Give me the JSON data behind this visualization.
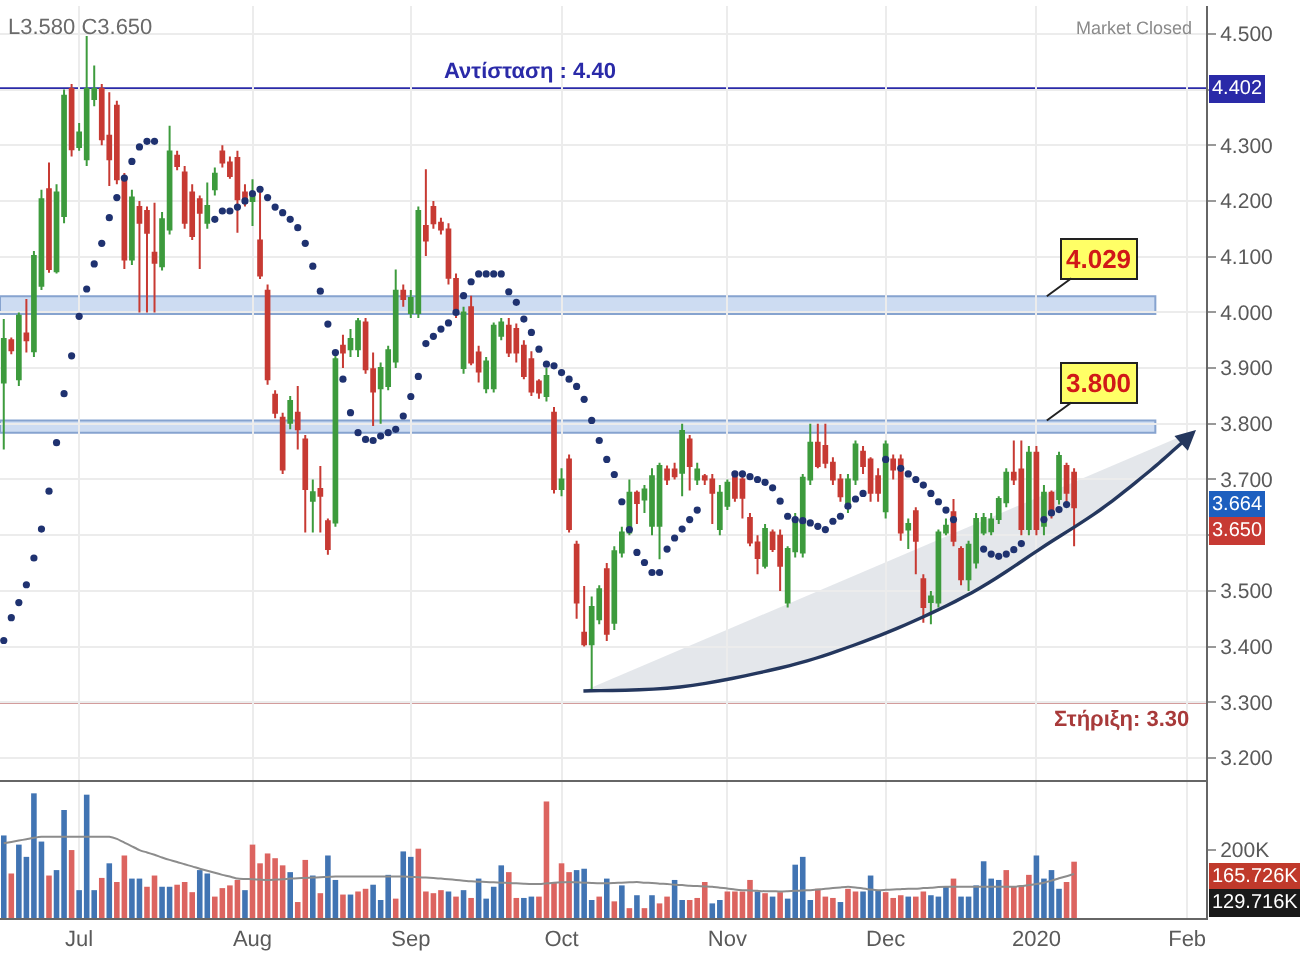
{
  "chart_data": [
    {
      "type": "candlestick",
      "categories": [
        null,
        null,
        null,
        null,
        null,
        null,
        null,
        null,
        null,
        null,
        null,
        null,
        null,
        null,
        null,
        null,
        null,
        null,
        null,
        null,
        null,
        null,
        null,
        null,
        null,
        null,
        null,
        null,
        null,
        null,
        null,
        null,
        null,
        null,
        null,
        null,
        null,
        null,
        null,
        null,
        null,
        null,
        null,
        null,
        null,
        null,
        null,
        null,
        null,
        null,
        null,
        null,
        null,
        null,
        null,
        null,
        null,
        null,
        null,
        null,
        null,
        null,
        null,
        null,
        null,
        null,
        null,
        null,
        null,
        null,
        null,
        null,
        null,
        null,
        null,
        null,
        null,
        null,
        null,
        null,
        null,
        null,
        null,
        null,
        null,
        null,
        null,
        null,
        null,
        null,
        null,
        null,
        null,
        null,
        null,
        null,
        null,
        null,
        null,
        null,
        null,
        null,
        null,
        null,
        null,
        null,
        null,
        null,
        null,
        null,
        null,
        null,
        null,
        null,
        null,
        null,
        null,
        null,
        null,
        null,
        null,
        null,
        null,
        null,
        null,
        null,
        null,
        null,
        null,
        null,
        null,
        null,
        null,
        null,
        null,
        null,
        null,
        null,
        null,
        null,
        null,
        null,
        null,
        null,
        null,
        null,
        null,
        null,
        null,
        null,
        null,
        null,
        null,
        null,
        null,
        null,
        null,
        null,
        null,
        null
      ],
      "ohlc": [
        [
          3.874,
          3.988,
          3.754,
          3.952
        ],
        [
          3.95,
          3.955,
          3.925,
          3.932
        ],
        [
          3.88,
          4.0,
          3.868,
          3.994
        ],
        [
          3.962,
          4.024,
          3.928,
          3.95
        ],
        [
          3.93,
          4.11,
          3.92,
          4.101
        ],
        [
          4.048,
          4.22,
          4.04,
          4.203
        ],
        [
          4.221,
          4.269,
          4.071,
          4.078
        ],
        [
          4.074,
          4.23,
          4.07,
          4.215
        ],
        [
          4.173,
          4.4,
          4.16,
          4.389
        ],
        [
          4.401,
          4.41,
          4.28,
          4.293
        ],
        [
          4.297,
          4.34,
          4.29,
          4.323
        ],
        [
          4.275,
          4.496,
          4.263,
          4.401
        ],
        [
          4.383,
          4.443,
          4.37,
          4.401
        ],
        [
          4.401,
          4.41,
          4.3,
          4.311
        ],
        [
          4.317,
          4.395,
          4.227,
          4.275
        ],
        [
          4.371,
          4.38,
          4.23,
          4.239
        ],
        [
          4.241,
          4.25,
          4.078,
          4.095
        ],
        [
          4.095,
          4.22,
          4.085,
          4.206
        ],
        [
          4.189,
          4.2,
          4.0,
          4.161
        ],
        [
          4.182,
          4.19,
          4.0,
          4.143
        ],
        [
          4.107,
          4.197,
          4.0,
          4.089
        ],
        [
          4.083,
          4.18,
          4.075,
          4.167
        ],
        [
          4.149,
          4.335,
          4.14,
          4.289
        ],
        [
          4.281,
          4.29,
          4.255,
          4.263
        ],
        [
          4.251,
          4.263,
          4.15,
          4.161
        ],
        [
          4.215,
          4.23,
          4.13,
          4.137
        ],
        [
          4.203,
          4.21,
          4.078,
          4.179
        ],
        [
          4.161,
          4.233,
          4.15,
          4.191
        ],
        [
          4.221,
          4.26,
          4.21,
          4.249
        ],
        [
          4.289,
          4.3,
          4.26,
          4.269
        ],
        [
          4.269,
          4.28,
          4.24,
          4.245
        ],
        [
          4.277,
          4.29,
          4.143,
          4.203
        ],
        [
          4.215,
          4.23,
          4.19,
          4.197
        ],
        [
          4.2,
          4.239,
          4.155,
          4.21
        ],
        [
          4.129,
          4.221,
          4.06,
          4.066
        ],
        [
          4.039,
          4.05,
          3.87,
          3.88
        ],
        [
          3.852,
          3.86,
          3.81,
          3.82
        ],
        [
          3.811,
          3.82,
          3.71,
          3.718
        ],
        [
          3.802,
          3.85,
          3.79,
          3.841
        ],
        [
          3.82,
          3.868,
          3.754,
          3.79
        ],
        [
          3.772,
          3.78,
          3.605,
          3.683
        ],
        [
          3.662,
          3.7,
          3.605,
          3.677
        ],
        [
          3.683,
          3.724,
          3.605,
          3.671
        ],
        [
          3.625,
          3.63,
          3.565,
          3.575
        ],
        [
          3.623,
          3.93,
          3.615,
          3.916
        ],
        [
          3.94,
          3.96,
          3.9,
          3.928
        ],
        [
          3.934,
          3.97,
          3.92,
          3.952
        ],
        [
          3.934,
          3.99,
          3.92,
          3.984
        ],
        [
          3.982,
          3.99,
          3.89,
          3.898
        ],
        [
          3.898,
          3.928,
          3.796,
          3.858
        ],
        [
          3.864,
          3.91,
          3.8,
          3.9
        ],
        [
          3.868,
          3.94,
          3.86,
          3.932
        ],
        [
          3.912,
          4.077,
          3.9,
          4.039
        ],
        [
          4.039,
          4.05,
          4.01,
          4.024
        ],
        [
          3.999,
          4.04,
          3.99,
          4.026
        ],
        [
          3.999,
          4.19,
          3.99,
          4.182
        ],
        [
          4.155,
          4.257,
          4.101,
          4.129
        ],
        [
          4.189,
          4.2,
          4.15,
          4.16
        ],
        [
          4.161,
          4.17,
          4.14,
          4.149
        ],
        [
          4.149,
          4.16,
          4.05,
          4.062
        ],
        [
          4.06,
          4.07,
          3.99,
          4.0
        ],
        [
          3.9,
          4.01,
          3.89,
          4.0
        ],
        [
          4.009,
          4.03,
          3.905,
          3.91
        ],
        [
          3.928,
          3.94,
          3.874,
          3.894
        ],
        [
          3.864,
          3.92,
          3.855,
          3.912
        ],
        [
          3.864,
          3.982,
          3.856,
          3.976
        ],
        [
          3.958,
          3.99,
          3.95,
          3.982
        ],
        [
          3.976,
          3.99,
          3.92,
          3.928
        ],
        [
          3.97,
          3.98,
          3.91,
          3.928
        ],
        [
          3.94,
          3.95,
          3.88,
          3.886
        ],
        [
          3.916,
          3.93,
          3.85,
          3.858
        ],
        [
          3.876,
          3.88,
          3.845,
          3.856
        ],
        [
          3.85,
          3.9,
          3.84,
          3.886
        ],
        [
          3.82,
          3.83,
          3.675,
          3.683
        ],
        [
          3.683,
          3.72,
          3.67,
          3.7
        ],
        [
          3.736,
          3.745,
          3.605,
          3.611
        ],
        [
          3.583,
          3.59,
          3.45,
          3.479
        ],
        [
          3.425,
          3.509,
          3.4,
          3.404
        ],
        [
          3.404,
          3.49,
          3.322,
          3.471
        ],
        [
          3.449,
          3.51,
          3.44,
          3.503
        ],
        [
          3.539,
          3.55,
          3.41,
          3.423
        ],
        [
          3.443,
          3.58,
          3.43,
          3.571
        ],
        [
          3.569,
          3.615,
          3.56,
          3.605
        ],
        [
          3.605,
          3.7,
          3.6,
          3.676
        ],
        [
          3.676,
          3.68,
          3.62,
          3.658
        ],
        [
          3.664,
          3.69,
          3.64,
          3.682
        ],
        [
          3.617,
          3.72,
          3.6,
          3.706
        ],
        [
          3.617,
          3.73,
          3.557,
          3.724
        ],
        [
          3.718,
          3.725,
          3.69,
          3.7
        ],
        [
          3.718,
          3.73,
          3.7,
          3.706
        ],
        [
          3.712,
          3.8,
          3.67,
          3.787
        ],
        [
          3.772,
          3.78,
          3.68,
          3.724
        ],
        [
          3.7,
          3.73,
          3.69,
          3.718
        ],
        [
          3.706,
          3.71,
          3.69,
          3.7
        ],
        [
          3.7,
          3.71,
          3.62,
          3.676
        ],
        [
          3.611,
          3.69,
          3.6,
          3.676
        ],
        [
          3.653,
          3.7,
          3.645,
          3.694
        ],
        [
          3.703,
          3.71,
          3.66,
          3.667
        ],
        [
          3.7,
          3.71,
          3.63,
          3.667
        ],
        [
          3.631,
          3.64,
          3.58,
          3.587
        ],
        [
          3.587,
          3.6,
          3.53,
          3.559
        ],
        [
          3.545,
          3.62,
          3.54,
          3.611
        ],
        [
          3.605,
          3.61,
          3.57,
          3.575
        ],
        [
          3.599,
          3.61,
          3.5,
          3.545
        ],
        [
          3.479,
          3.58,
          3.47,
          3.575
        ],
        [
          3.571,
          3.64,
          3.56,
          3.629
        ],
        [
          3.569,
          3.71,
          3.56,
          3.703
        ],
        [
          3.7,
          3.8,
          3.69,
          3.766
        ],
        [
          3.766,
          3.8,
          3.72,
          3.724
        ],
        [
          3.76,
          3.8,
          3.72,
          3.73
        ],
        [
          3.73,
          3.74,
          3.69,
          3.7
        ],
        [
          3.7,
          3.71,
          3.66,
          3.67
        ],
        [
          3.652,
          3.71,
          3.64,
          3.7
        ],
        [
          3.7,
          3.77,
          3.69,
          3.763
        ],
        [
          3.75,
          3.76,
          3.71,
          3.724
        ],
        [
          3.736,
          3.74,
          3.66,
          3.676
        ],
        [
          3.706,
          3.72,
          3.66,
          3.676
        ],
        [
          3.643,
          3.77,
          3.63,
          3.763
        ],
        [
          3.736,
          3.745,
          3.7,
          3.718
        ],
        [
          3.736,
          3.745,
          3.59,
          3.605
        ],
        [
          3.61,
          3.63,
          3.575,
          3.62
        ],
        [
          3.643,
          3.65,
          3.53,
          3.59
        ],
        [
          3.521,
          3.53,
          3.443,
          3.471
        ],
        [
          3.48,
          3.5,
          3.44,
          3.49
        ],
        [
          3.479,
          3.61,
          3.47,
          3.605
        ],
        [
          3.605,
          3.63,
          3.6,
          3.617
        ],
        [
          3.641,
          3.665,
          3.58,
          3.59
        ],
        [
          3.575,
          3.58,
          3.51,
          3.521
        ],
        [
          3.521,
          3.59,
          3.5,
          3.583
        ],
        [
          3.551,
          3.64,
          3.54,
          3.629
        ],
        [
          3.605,
          3.64,
          3.6,
          3.631
        ],
        [
          3.607,
          3.64,
          3.6,
          3.628
        ],
        [
          3.629,
          3.67,
          3.62,
          3.665
        ],
        [
          3.659,
          3.72,
          3.65,
          3.712
        ],
        [
          3.712,
          3.77,
          3.69,
          3.7
        ],
        [
          3.718,
          3.77,
          3.6,
          3.611
        ],
        [
          3.611,
          3.76,
          3.6,
          3.748
        ],
        [
          3.748,
          3.76,
          3.6,
          3.611
        ],
        [
          3.617,
          3.69,
          3.6,
          3.676
        ],
        [
          3.676,
          3.68,
          3.63,
          3.641
        ],
        [
          3.665,
          3.75,
          3.655,
          3.742
        ],
        [
          3.724,
          3.73,
          3.66,
          3.676
        ],
        [
          3.712,
          3.72,
          3.58,
          3.65
        ],
        null,
        null,
        null,
        null,
        null,
        null,
        null,
        null,
        null,
        null,
        null,
        null,
        null,
        null,
        null,
        null,
        null
      ],
      "colors": [
        "#3d9b3d",
        "#c73a33",
        "#3d9b3d",
        "#c73a33",
        "#3d9b3d",
        "#3d9b3d",
        "#c73a33",
        "#3d9b3d",
        "#3d9b3d",
        "#c73a33",
        "#3d9b3d",
        "#3d9b3d",
        "#3d9b3d",
        "#c73a33",
        "#c73a33",
        "#c73a33",
        "#c73a33",
        "#3d9b3d",
        "#c73a33",
        "#c73a33",
        "#c73a33",
        "#3d9b3d",
        "#3d9b3d",
        "#c73a33",
        "#c73a33",
        "#c73a33",
        "#c73a33",
        "#3d9b3d",
        "#3d9b3d",
        "#c73a33",
        "#c73a33",
        "#c73a33",
        "#c73a33",
        "#3d9b3d",
        "#c73a33",
        "#c73a33",
        "#c73a33",
        "#c73a33",
        "#3d9b3d",
        "#c73a33",
        "#c73a33",
        "#3d9b3d",
        "#c73a33",
        "#c73a33",
        "#3d9b3d",
        "#c73a33",
        "#3d9b3d",
        "#3d9b3d",
        "#c73a33",
        "#c73a33",
        "#3d9b3d",
        "#3d9b3d",
        "#3d9b3d",
        "#c73a33",
        "#3d9b3d",
        "#3d9b3d",
        "#c73a33",
        "#c73a33",
        "#c73a33",
        "#c73a33",
        "#c73a33",
        "#3d9b3d",
        "#c73a33",
        "#c73a33",
        "#3d9b3d",
        "#3d9b3d",
        "#3d9b3d",
        "#c73a33",
        "#c73a33",
        "#c73a33",
        "#c73a33",
        "#c73a33",
        "#3d9b3d",
        "#c73a33",
        "#3d9b3d",
        "#c73a33",
        "#c73a33",
        "#c73a33",
        "#3d9b3d",
        "#3d9b3d",
        "#c73a33",
        "#3d9b3d",
        "#3d9b3d",
        "#3d9b3d",
        "#c73a33",
        "#3d9b3d",
        "#3d9b3d",
        "#3d9b3d",
        "#c73a33",
        "#c73a33",
        "#3d9b3d",
        "#c73a33",
        "#3d9b3d",
        "#c73a33",
        "#c73a33",
        "#3d9b3d",
        "#3d9b3d",
        "#c73a33",
        "#c73a33",
        "#c73a33",
        "#c73a33",
        "#3d9b3d",
        "#c73a33",
        "#c73a33",
        "#3d9b3d",
        "#3d9b3d",
        "#3d9b3d",
        "#3d9b3d",
        "#c73a33",
        "#c73a33",
        "#c73a33",
        "#c73a33",
        "#3d9b3d",
        "#3d9b3d",
        "#c73a33",
        "#c73a33",
        "#c73a33",
        "#3d9b3d",
        "#c73a33",
        "#c73a33",
        "#3d9b3d",
        "#c73a33",
        "#c73a33",
        "#3d9b3d",
        "#3d9b3d",
        "#3d9b3d",
        "#c73a33",
        "#c73a33",
        "#3d9b3d",
        "#3d9b3d",
        "#3d9b3d",
        "#3d9b3d",
        "#3d9b3d",
        "#3d9b3d",
        "#c73a33",
        "#c73a33",
        "#3d9b3d",
        "#c73a33",
        "#3d9b3d",
        "#c73a33",
        "#3d9b3d",
        "#c73a33",
        "#c73a33",
        null,
        null,
        null,
        null,
        null,
        null,
        null,
        null,
        null,
        null,
        null,
        null,
        null,
        null,
        null,
        null,
        null
      ],
      "series": [
        {
          "type": "scatter",
          "color": "#1f3270",
          "marker": "circle",
          "values": [
            3.411,
            3.452,
            3.479,
            3.511,
            3.559,
            3.611,
            3.679,
            3.766,
            3.854,
            3.922,
            3.993,
            4.042,
            4.087,
            4.124,
            4.17,
            4.206,
            4.241,
            4.271,
            4.297,
            4.307,
            4.307,
            null,
            null,
            null,
            null,
            null,
            null,
            null,
            4.167,
            4.182,
            4.182,
            4.189,
            4.2,
            4.213,
            4.221,
            4.206,
            4.189,
            4.179,
            4.167,
            4.152,
            4.124,
            4.083,
            4.038,
            3.979,
            3.928,
            3.88,
            3.82,
            3.784,
            3.772,
            3.77,
            3.778,
            3.784,
            3.79,
            3.814,
            3.849,
            3.885,
            3.944,
            3.957,
            3.97,
            3.981,
            4.0,
            4.03,
            4.055,
            4.069,
            4.069,
            4.069,
            4.069,
            4.037,
            4.018,
            3.988,
            3.964,
            3.934,
            3.907,
            3.904,
            3.892,
            3.88,
            3.867,
            3.844,
            3.806,
            3.77,
            3.736,
            3.709,
            3.66,
            3.61,
            3.569,
            3.551,
            3.533,
            3.533,
            3.575,
            3.595,
            3.611,
            3.628,
            3.645,
            null,
            null,
            null,
            null,
            3.71,
            3.71,
            3.705,
            3.7,
            3.695,
            3.685,
            3.661,
            3.634,
            3.628,
            3.626,
            3.622,
            3.616,
            3.61,
            3.625,
            3.634,
            3.652,
            3.665,
            3.675,
            null,
            null,
            3.736,
            null,
            3.72,
            3.71,
            3.7,
            3.69,
            3.675,
            3.66,
            3.645,
            3.628,
            null,
            null,
            null,
            3.575,
            3.566,
            3.562,
            3.566,
            3.574,
            3.585,
            null,
            null,
            3.628,
            3.64,
            3.646,
            3.655,
            null,
            null,
            null,
            null,
            null,
            null,
            null,
            null,
            null,
            null,
            null,
            null,
            null,
            null,
            null,
            null,
            null,
            null
          ]
        }
      ],
      "ylim": [
        3.16,
        4.55
      ],
      "yticks": [
        {
          "value": 4.5,
          "label": "4.500"
        },
        {
          "value": 4.4,
          "label": null
        },
        {
          "value": 4.3,
          "label": "4.300"
        },
        {
          "value": 4.2,
          "label": "4.200"
        },
        {
          "value": 4.1,
          "label": "4.100"
        },
        {
          "value": 4.0,
          "label": "4.000"
        },
        {
          "value": 3.9,
          "label": "3.900"
        },
        {
          "value": 3.8,
          "label": "3.800"
        },
        {
          "value": 3.7,
          "label": "3.700"
        },
        {
          "value": 3.6,
          "label": null
        },
        {
          "value": 3.5,
          "label": "3.500"
        },
        {
          "value": 3.4,
          "label": "3.400"
        },
        {
          "value": 3.3,
          "label": "3.300"
        },
        {
          "value": 3.2,
          "label": "3.200"
        }
      ],
      "grid": true,
      "tick_labels": "y",
      "ref_lines": [
        {
          "axis": "y",
          "value": 4.402,
          "label": "Αντίσταση : 4.40",
          "color": "#2a2aa8"
        },
        {
          "axis": "y",
          "value": 3.3,
          "label": "Στήριξη: 3.30",
          "color": "#a83a3a"
        }
      ],
      "bands": [
        {
          "axis": "y",
          "from": 3.997,
          "to": 4.029,
          "label": "4.029",
          "color": "#cddcf2"
        },
        {
          "axis": "y",
          "from": 3.784,
          "to": 3.806,
          "label": "3.800",
          "color": "#cddcf2"
        }
      ],
      "annotations": [
        "L3.580 C3.650",
        "Market Closed",
        "3.664",
        {
          "text": "4.402",
          "y": 4.402
        },
        {
          "text": "3.650",
          "y": 3.65
        }
      ]
    },
    {
      "type": "bar",
      "categories": [
        null,
        null,
        null,
        null,
        null,
        null,
        null,
        null,
        null,
        null,
        "Jul",
        null,
        null,
        null,
        null,
        null,
        null,
        null,
        null,
        null,
        null,
        null,
        null,
        null,
        null,
        null,
        null,
        null,
        null,
        null,
        null,
        null,
        null,
        "Aug",
        null,
        null,
        null,
        null,
        null,
        null,
        null,
        null,
        null,
        null,
        null,
        null,
        null,
        null,
        null,
        null,
        null,
        null,
        null,
        null,
        "Sep",
        null,
        null,
        null,
        null,
        null,
        null,
        null,
        null,
        null,
        null,
        null,
        null,
        null,
        null,
        null,
        null,
        null,
        null,
        null,
        "Oct",
        null,
        null,
        null,
        null,
        null,
        null,
        null,
        null,
        null,
        null,
        null,
        null,
        null,
        null,
        null,
        null,
        null,
        null,
        null,
        null,
        null,
        "Nov",
        null,
        null,
        null,
        null,
        null,
        null,
        null,
        null,
        null,
        null,
        null,
        null,
        null,
        null,
        null,
        null,
        null,
        null,
        null,
        null,
        "Dec",
        null,
        null,
        null,
        null,
        null,
        null,
        null,
        null,
        null,
        null,
        null,
        null,
        null,
        null,
        null,
        null,
        null,
        null,
        null,
        "2020",
        null,
        null,
        null,
        null,
        null,
        null,
        null,
        null,
        null,
        null,
        null,
        null,
        null,
        null,
        null,
        null,
        null,
        null,
        null,
        "Feb",
        null,
        null
      ],
      "series": [
        {
          "type": "bar",
          "values": [
            243,
            131,
            216,
            180,
            367,
            225,
            125,
            141,
            318,
            200,
            82,
            363,
            82,
            118,
            161,
            106,
            184,
            116,
            116,
            92,
            125,
            92,
            92,
            98,
            106,
            76,
            141,
            131,
            63,
            88,
            96,
            112,
            82,
            216,
            161,
            190,
            176,
            155,
            135,
            47,
            171,
            125,
            73,
            184,
            112,
            69,
            69,
            78,
            86,
            98,
            53,
            127,
            57,
            196,
            180,
            204,
            78,
            73,
            82,
            78,
            63,
            82,
            59,
            116,
            57,
            92,
            155,
            135,
            59,
            59,
            63,
            63,
            343,
            106,
            161,
            135,
            141,
            145,
            53,
            63,
            116,
            49,
            96,
            29,
            67,
            29,
            67,
            43,
            63,
            112,
            53,
            53,
            59,
            106,
            43,
            53,
            78,
            78,
            78,
            112,
            78,
            73,
            63,
            76,
            57,
            157,
            180,
            53,
            86,
            63,
            59,
            47,
            86,
            78,
            78,
            125,
            82,
            76,
            59,
            67,
            63,
            63,
            78,
            67,
            63,
            92,
            116,
            63,
            63,
            96,
            167,
            116,
            112,
            141,
            92,
            96,
            127,
            184,
            116,
            141,
            86,
            106,
            165.726,
            null,
            null,
            null,
            null,
            null,
            null,
            null,
            null,
            null,
            null,
            null,
            null,
            null,
            null,
            null,
            null,
            null
          ],
          "colors": [
            "#4174b3",
            "#dc6460",
            "#4174b3",
            "#4174b3",
            "#4174b3",
            "#4174b3",
            "#dc6460",
            "#4174b3",
            "#4174b3",
            "#dc6460",
            "#4174b3",
            "#4174b3",
            "#4174b3",
            "#dc6460",
            "#4174b3",
            "#dc6460",
            "#dc6460",
            "#4174b3",
            "#4174b3",
            "#dc6460",
            "#dc6460",
            "#4174b3",
            "#4174b3",
            "#dc6460",
            "#dc6460",
            "#dc6460",
            "#4174b3",
            "#4174b3",
            "#dc6460",
            "#dc6460",
            "#dc6460",
            "#dc6460",
            "#4174b3",
            "#dc6460",
            "#dc6460",
            "#dc6460",
            "#dc6460",
            "#dc6460",
            "#4174b3",
            "#dc6460",
            "#dc6460",
            "#4174b3",
            "#dc6460",
            "#4174b3",
            "#4174b3",
            "#dc6460",
            "#4174b3",
            "#dc6460",
            "#dc6460",
            "#4174b3",
            "#4174b3",
            "#4174b3",
            "#dc6460",
            "#4174b3",
            "#4174b3",
            "#dc6460",
            "#dc6460",
            "#dc6460",
            "#dc6460",
            "#4174b3",
            "#dc6460",
            "#4174b3",
            "#dc6460",
            "#4174b3",
            "#4174b3",
            "#4174b3",
            "#4174b3",
            "#dc6460",
            "#dc6460",
            "#4174b3",
            "#4174b3",
            "#dc6460",
            "#dc6460",
            "#dc6460",
            "#dc6460",
            "#dc6460",
            "#4174b3",
            "#4174b3",
            "#4174b3",
            "#dc6460",
            "#4174b3",
            "#dc6460",
            "#4174b3",
            "#dc6460",
            "#4174b3",
            "#dc6460",
            "#4174b3",
            "#dc6460",
            "#dc6460",
            "#4174b3",
            "#4174b3",
            "#dc6460",
            "#dc6460",
            "#dc6460",
            "#4174b3",
            "#4174b3",
            "#dc6460",
            "#dc6460",
            "#dc6460",
            "#dc6460",
            "#4174b3",
            "#dc6460",
            "#4174b3",
            "#dc6460",
            "#4174b3",
            "#4174b3",
            "#4174b3",
            "#4174b3",
            "#dc6460",
            "#dc6460",
            "#dc6460",
            "#4174b3",
            "#dc6460",
            "#dc6460",
            "#4174b3",
            "#4174b3",
            "#4174b3",
            "#dc6460",
            "#dc6460",
            "#dc6460",
            "#4174b3",
            "#dc6460",
            "#dc6460",
            "#4174b3",
            "#4174b3",
            "#4174b3",
            "#dc6460",
            "#4174b3",
            "#4174b3",
            "#4174b3",
            "#4174b3",
            "#4174b3",
            "#4174b3",
            "#dc6460",
            "#dc6460",
            "#dc6460",
            "#dc6460",
            "#4174b3",
            "#4174b3",
            "#4174b3",
            "#4174b3",
            "#dc6460",
            "#dc6460",
            null,
            null,
            null,
            null,
            null,
            null,
            null,
            null,
            null,
            null,
            null,
            null,
            null,
            null,
            null,
            null,
            null
          ]
        },
        {
          "type": "line",
          "color": "#8c8c8c",
          "values": [
            220,
            224,
            228,
            232,
            236,
            239,
            239,
            239,
            239,
            239,
            239,
            239,
            239,
            239,
            239,
            233,
            222,
            211,
            200,
            193,
            186,
            178,
            171,
            165,
            158,
            152,
            145,
            139,
            133,
            127,
            122,
            116,
            115,
            114,
            113,
            112,
            113,
            114,
            116,
            117,
            118,
            119,
            120,
            121,
            122,
            122,
            122,
            122,
            122,
            122,
            122,
            122,
            122,
            122,
            121,
            120,
            119,
            118,
            116,
            114,
            112,
            110,
            108,
            107,
            106,
            105,
            104,
            103,
            102,
            101,
            100,
            100,
            102,
            104,
            105,
            106,
            105,
            104,
            103,
            102,
            102,
            103,
            104,
            105,
            106,
            104,
            103,
            101,
            100,
            98,
            97,
            95,
            94,
            93,
            92,
            89,
            87,
            84,
            82,
            81,
            80,
            79,
            79,
            78,
            79,
            80,
            81,
            82,
            84,
            86,
            88,
            90,
            92,
            90,
            87,
            84,
            82,
            83,
            84,
            85,
            86,
            86,
            88,
            89,
            91,
            92,
            92,
            92,
            92,
            92,
            92,
            92,
            92,
            92,
            92,
            94,
            97,
            100,
            104,
            110,
            117,
            123,
            129.716,
            null,
            null,
            null,
            null,
            null,
            null,
            null,
            null,
            null,
            null,
            null,
            null,
            null,
            null,
            null,
            null,
            null
          ]
        }
      ],
      "ylim": [
        0,
        400
      ],
      "yticks": [
        {
          "value": 200,
          "label": "200K"
        }
      ],
      "grid": "x",
      "annotations": [
        "165.726K",
        "129.716K"
      ]
    }
  ]
}
